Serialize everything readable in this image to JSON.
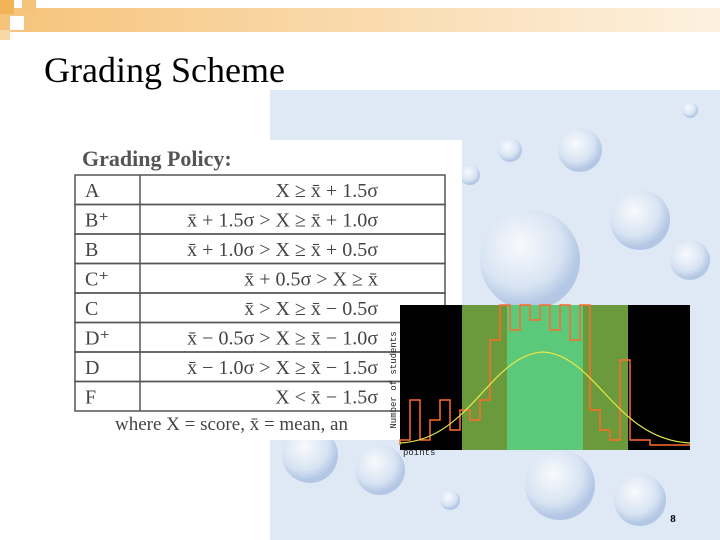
{
  "slide": {
    "title": "Grading Scheme",
    "page_number": "8"
  },
  "policy": {
    "heading": "Grading Policy:",
    "rows": [
      [
        "A",
        "X ≥ x̄ + 1.5σ"
      ],
      [
        "B⁺",
        "x̄ + 1.5σ > X ≥ x̄ + 1.0σ"
      ],
      [
        "B",
        "x̄ + 1.0σ > X ≥ x̄ + 0.5σ"
      ],
      [
        "C⁺",
        "x̄ + 0.5σ > X ≥ x̄"
      ],
      [
        "C",
        "x̄ > X ≥ x̄ − 0.5σ"
      ],
      [
        "D⁺",
        "x̄ − 0.5σ > X ≥ x̄ − 1.0σ"
      ],
      [
        "D",
        "x̄ − 1.0σ > X ≥ x̄ − 1.5σ"
      ],
      [
        "F",
        "X < x̄ − 1.5σ"
      ]
    ],
    "note": "where X = score, x̄ = mean, an"
  },
  "histogram": {
    "y_label": "Number of students",
    "x_label": "points"
  }
}
